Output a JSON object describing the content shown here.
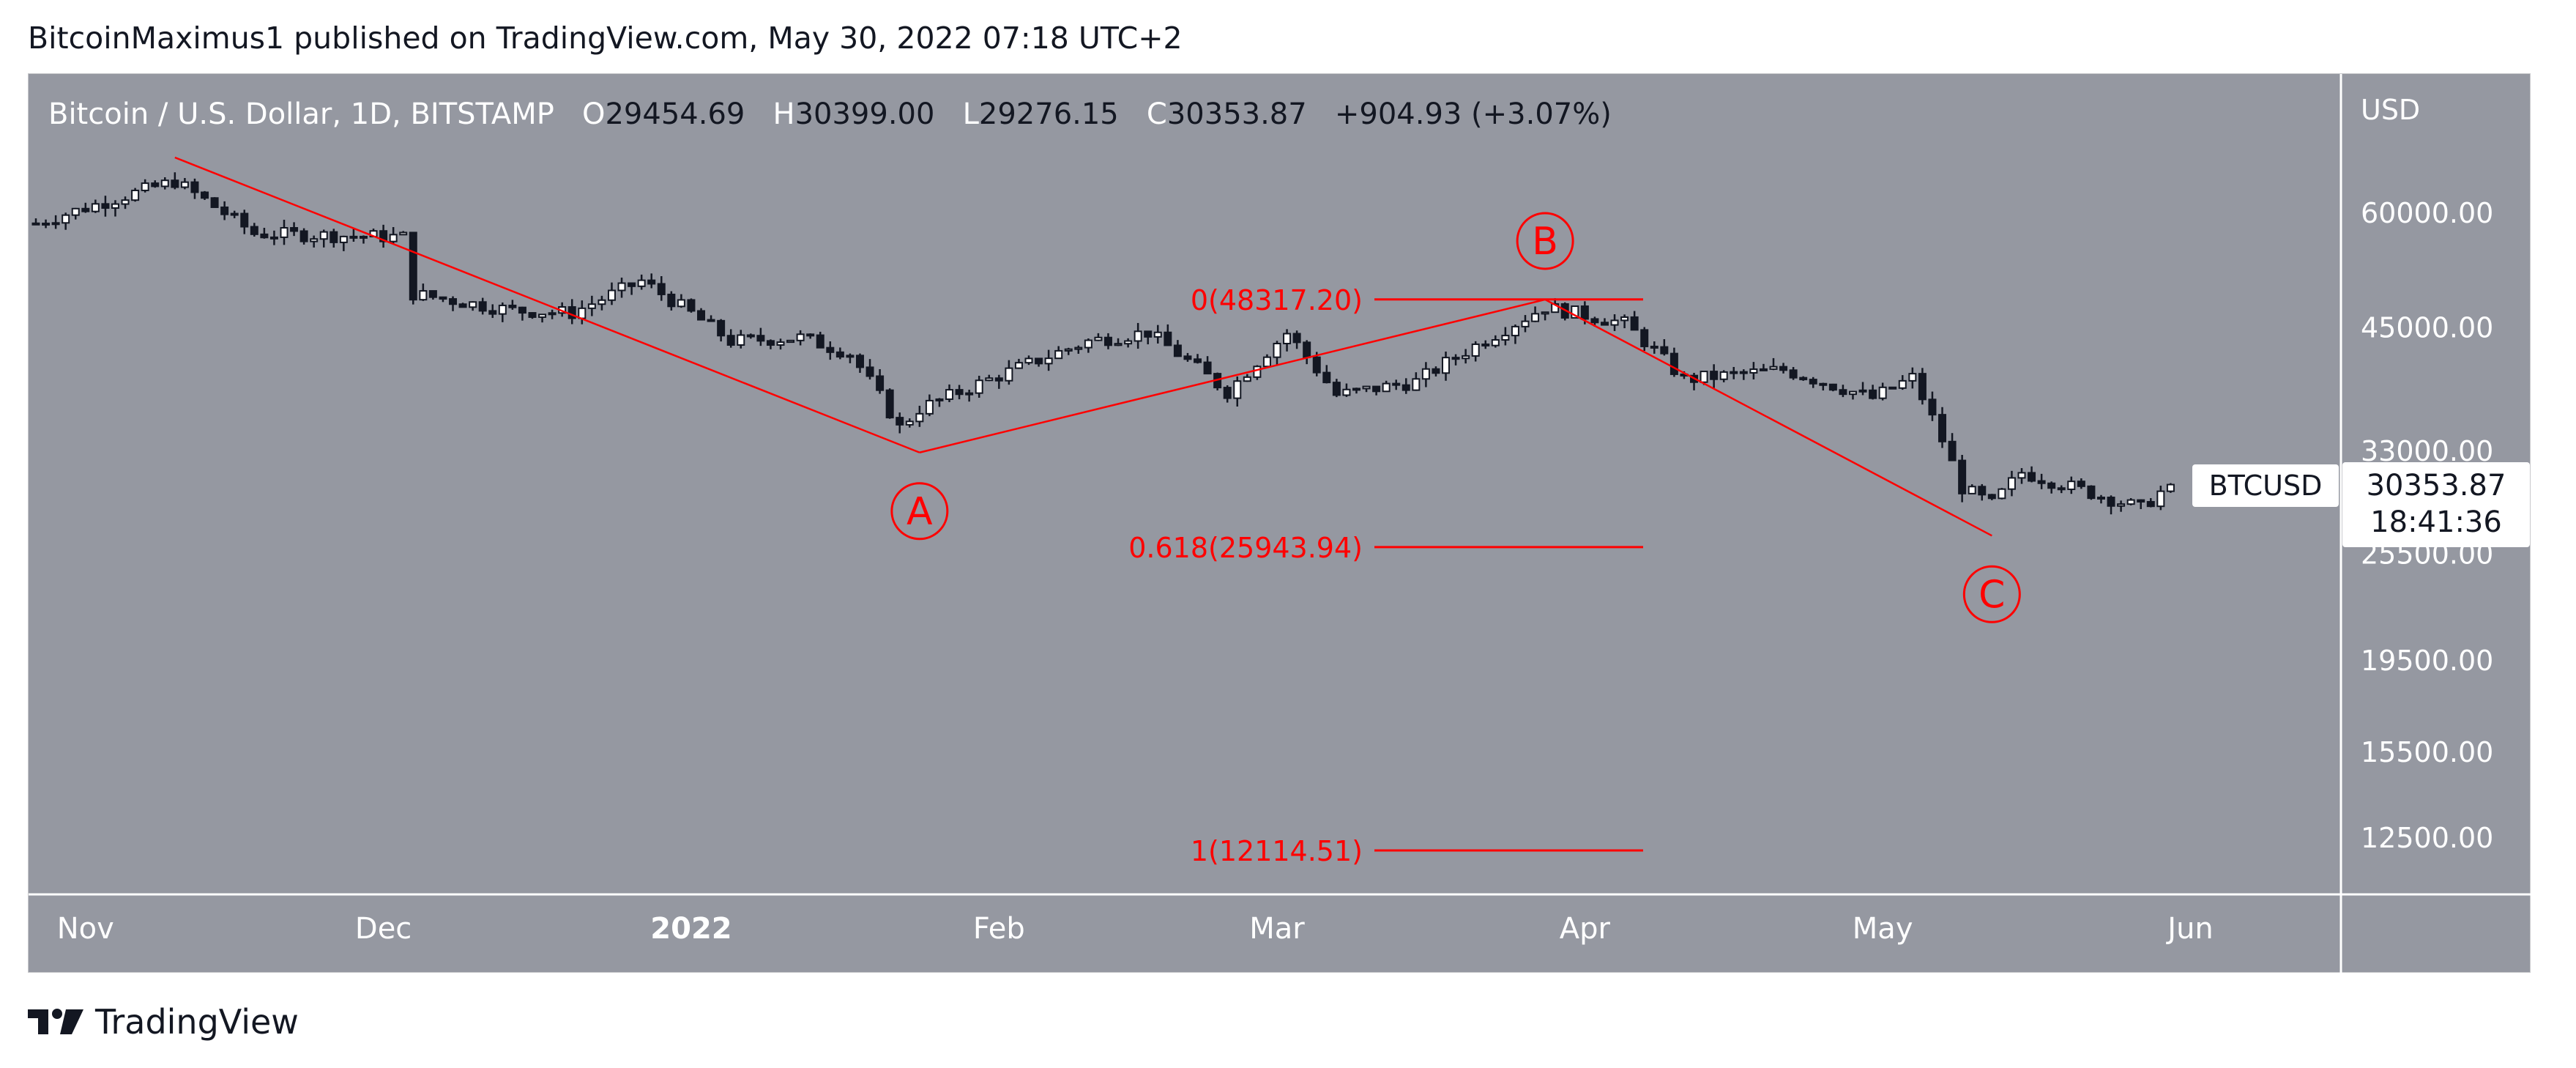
{
  "header": {
    "text": "BitcoinMaximus1 published on TradingView.com, May 30, 2022 07:18 UTC+2"
  },
  "legend": {
    "symbol": "Bitcoin / U.S. Dollar, 1D, BITSTAMP",
    "open_label": "O",
    "open": "29454.69",
    "high_label": "H",
    "high": "30399.00",
    "low_label": "L",
    "low": "29276.15",
    "close_label": "C",
    "close": "30353.87",
    "change": "+904.93 (+3.07%)"
  },
  "brand": {
    "name": "TradingView",
    "icon": "tradingview-logo-icon"
  },
  "price_tag": {
    "symbol": "BTCUSD",
    "price": "30353.87",
    "countdown": "18:41:36"
  },
  "colors": {
    "background": "#9598a1",
    "candle_up": "#ffffff",
    "candle_down": "#131722",
    "annotation": "#ff0000",
    "axis_text": "#ffffff"
  },
  "chart_data": {
    "type": "candlestick",
    "ylabel": "USD",
    "y_scale": "log",
    "y_ticks": [
      "60000.00",
      "45000.00",
      "33000.00",
      "25500.00",
      "19500.00",
      "15500.00",
      "12500.00"
    ],
    "x_ticks": [
      "Nov",
      "Dec",
      "2022",
      "Feb",
      "Mar",
      "Apr",
      "May",
      "Jun"
    ],
    "grid": false,
    "wave_labels": [
      {
        "label": "A",
        "date": "2022-01-24",
        "price": 32900
      },
      {
        "label": "B",
        "date": "2022-03-28",
        "price": 48300
      },
      {
        "label": "C",
        "date": "2022-05-12",
        "price": 26700
      }
    ],
    "trend_lines": [
      {
        "from": {
          "date": "2021-11-10",
          "price": 69000
        },
        "to": {
          "date": "2022-01-24",
          "price": 32900
        }
      },
      {
        "from": {
          "date": "2022-01-24",
          "price": 32900
        },
        "to": {
          "date": "2022-03-28",
          "price": 48300
        }
      },
      {
        "from": {
          "date": "2022-03-28",
          "price": 48300
        },
        "to": {
          "date": "2022-05-12",
          "price": 26700
        }
      }
    ],
    "fib_levels": [
      {
        "label": "0(48317.20)",
        "price": 48317.2
      },
      {
        "label": "0.618(25943.94)",
        "price": 25943.94
      },
      {
        "label": "1(12114.51)",
        "price": 12114.51
      }
    ],
    "ohlc_daily_close_path": {
      "start_date": "2021-10-27",
      "end_date": "2022-05-30",
      "anchors": [
        {
          "date": "2021-10-27",
          "close": 58500
        },
        {
          "date": "2021-11-10",
          "close": 65000
        },
        {
          "date": "2021-11-18",
          "close": 57000
        },
        {
          "date": "2021-12-03",
          "close": 56500
        },
        {
          "date": "2021-12-04",
          "close": 49000
        },
        {
          "date": "2021-12-14",
          "close": 47000
        },
        {
          "date": "2021-12-20",
          "close": 46700
        },
        {
          "date": "2021-12-27",
          "close": 50600
        },
        {
          "date": "2022-01-05",
          "close": 43500
        },
        {
          "date": "2022-01-12",
          "close": 43900
        },
        {
          "date": "2022-01-17",
          "close": 42200
        },
        {
          "date": "2022-01-22",
          "close": 35000
        },
        {
          "date": "2022-01-24",
          "close": 36700
        },
        {
          "date": "2022-02-10",
          "close": 43500
        },
        {
          "date": "2022-02-16",
          "close": 44500
        },
        {
          "date": "2022-02-24",
          "close": 38300
        },
        {
          "date": "2022-03-02",
          "close": 44400
        },
        {
          "date": "2022-03-07",
          "close": 38000
        },
        {
          "date": "2022-03-15",
          "close": 39300
        },
        {
          "date": "2022-03-28",
          "close": 47400
        },
        {
          "date": "2022-04-05",
          "close": 45500
        },
        {
          "date": "2022-04-11",
          "close": 39500
        },
        {
          "date": "2022-04-21",
          "close": 40500
        },
        {
          "date": "2022-04-30",
          "close": 37700
        },
        {
          "date": "2022-05-04",
          "close": 39700
        },
        {
          "date": "2022-05-09",
          "close": 30100
        },
        {
          "date": "2022-05-12",
          "close": 28900
        },
        {
          "date": "2022-05-15",
          "close": 31300
        },
        {
          "date": "2022-05-27",
          "close": 28600
        },
        {
          "date": "2022-05-30",
          "close": 30353.87
        }
      ]
    }
  }
}
